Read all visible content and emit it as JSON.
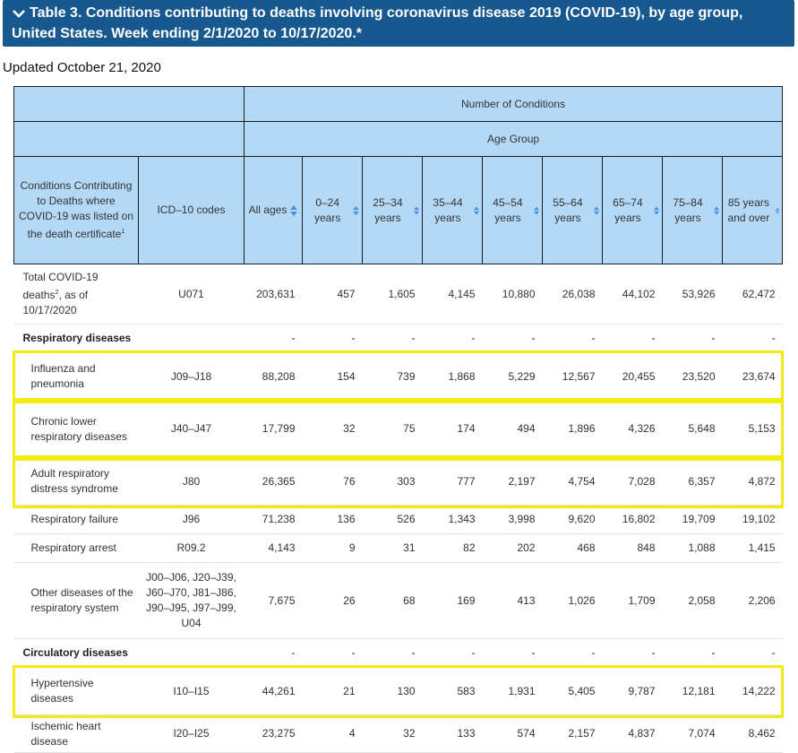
{
  "header": {
    "title": "Table 3. Conditions contributing to deaths involving coronavirus disease 2019 (COVID-19), by age group, United States. Week ending 2/1/2020 to 10/17/2020.*",
    "updated": "Updated October 21, 2020"
  },
  "table": {
    "group_header_1": "Number of Conditions",
    "group_header_2": "Age Group",
    "condition_col": "Conditions Contributing to Deaths where COVID-19 was listed on the death certificate",
    "condition_sup": "1",
    "code_col": "ICD–10 codes",
    "age_cols": [
      "All ages",
      "0–24 years",
      "25–34 years",
      "35–44 years",
      "45–54 years",
      "55–64 years",
      "65–74 years",
      "75–84 years",
      "85 years and over"
    ],
    "rows": [
      {
        "type": "total",
        "name": "Total COVID-19 deaths",
        "sup": "2",
        "suffix": ", as of 10/17/2020",
        "code": "U071",
        "values": [
          "203,631",
          "457",
          "1,605",
          "4,145",
          "10,880",
          "26,038",
          "44,102",
          "53,926",
          "62,472"
        ]
      },
      {
        "type": "category",
        "name": "Respiratory diseases",
        "values": [
          "-",
          "-",
          "-",
          "-",
          "-",
          "-",
          "-",
          "-",
          "-"
        ]
      },
      {
        "type": "row",
        "name": "Influenza and pneumonia",
        "code": "J09–J18",
        "highlight": true,
        "values": [
          "88,208",
          "154",
          "739",
          "1,868",
          "5,229",
          "12,567",
          "20,455",
          "23,520",
          "23,674"
        ]
      },
      {
        "type": "row",
        "name": "Chronic lower respiratory diseases",
        "code": "J40–J47",
        "highlight": true,
        "values": [
          "17,799",
          "32",
          "75",
          "174",
          "494",
          "1,896",
          "4,326",
          "5,648",
          "5,153"
        ]
      },
      {
        "type": "row",
        "name": "Adult respiratory distress syndrome",
        "code": "J80",
        "highlight": true,
        "values": [
          "26,365",
          "76",
          "303",
          "777",
          "2,197",
          "4,754",
          "7,028",
          "6,357",
          "4,872"
        ]
      },
      {
        "type": "row",
        "name": "Respiratory failure",
        "code": "J96",
        "values": [
          "71,238",
          "136",
          "526",
          "1,343",
          "3,998",
          "9,620",
          "16,802",
          "19,709",
          "19,102"
        ]
      },
      {
        "type": "row",
        "name": "Respiratory arrest",
        "code": "R09.2",
        "values": [
          "4,143",
          "9",
          "31",
          "82",
          "202",
          "468",
          "848",
          "1,088",
          "1,415"
        ]
      },
      {
        "type": "row",
        "name": "Other diseases of the respiratory system",
        "code": "J00–J06, J20–J39, J60–J70, J81–J86, J90–J95, J97–J99, U04",
        "values": [
          "7,675",
          "26",
          "68",
          "169",
          "413",
          "1,026",
          "1,709",
          "2,058",
          "2,206"
        ]
      },
      {
        "type": "category",
        "name": "Circulatory diseases",
        "values": [
          "-",
          "-",
          "-",
          "-",
          "-",
          "-",
          "-",
          "-",
          "-"
        ]
      },
      {
        "type": "row",
        "name": "Hypertensive diseases",
        "code": "I10–I15",
        "highlight": true,
        "values": [
          "44,261",
          "21",
          "130",
          "583",
          "1,931",
          "5,405",
          "9,787",
          "12,181",
          "14,222"
        ]
      },
      {
        "type": "row",
        "name": "Ischemic heart disease",
        "code": "I20–I25",
        "values": [
          "23,275",
          "4",
          "32",
          "133",
          "574",
          "2,157",
          "4,837",
          "7,074",
          "8,462"
        ]
      }
    ]
  },
  "icons": {
    "expand": "chevron-down-icon",
    "sort": "sort-arrows-icon"
  },
  "colors": {
    "title_bg": "#17598f",
    "header_bg": "#b3d9f7",
    "highlight": "#f4ec0e",
    "sort_icon": "#4a90d9"
  }
}
